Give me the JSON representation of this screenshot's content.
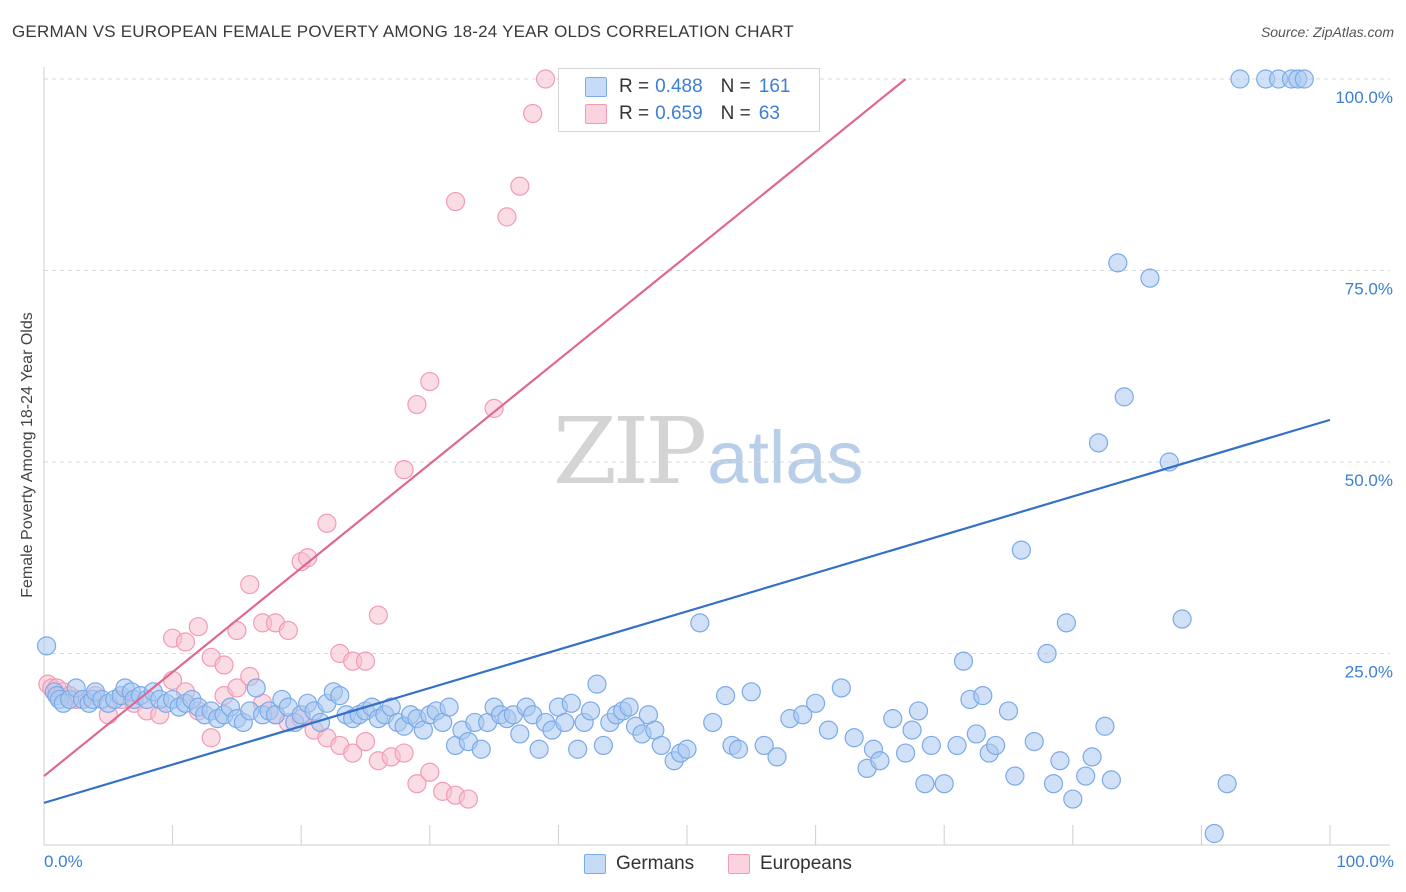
{
  "title": "GERMAN VS EUROPEAN FEMALE POVERTY AMONG 18-24 YEAR OLDS CORRELATION CHART",
  "source": "Source: ZipAtlas.com",
  "watermark": {
    "zip": "ZIP",
    "atlas": "atlas"
  },
  "legend": {
    "rows": [
      {
        "r_label": "R =",
        "r_value": "0.488",
        "n_label": "N =",
        "n_value": "161",
        "color": "#7aaae8"
      },
      {
        "r_label": "R =",
        "r_value": "0.659",
        "n_label": "N =",
        "n_value": "63",
        "color": "#f29bb5"
      }
    ]
  },
  "bottom_legend": [
    {
      "label": "Germans",
      "color": "#7aaae8"
    },
    {
      "label": "Europeans",
      "color": "#f29bb5"
    }
  ],
  "colors": {
    "german_fill": "#a9c8f0",
    "german_stroke": "#7aaae8",
    "german_line": "#3470c8",
    "european_fill": "#f6c0d0",
    "european_stroke": "#f29bb5",
    "european_line": "#e06890",
    "grid": "#d9d9d9",
    "tick_text": "#3d7fd1"
  },
  "chart_data": {
    "type": "scatter",
    "title": "GERMAN VS EUROPEAN FEMALE POVERTY AMONG 18-24 YEAR OLDS CORRELATION CHART",
    "xlabel": "",
    "ylabel": "Female Poverty Among 18-24 Year Olds",
    "xlim": [
      0,
      100
    ],
    "ylim": [
      0,
      100
    ],
    "x_tick_labels": [
      "0.0%",
      "100.0%"
    ],
    "y_tick_labels": [
      "25.0%",
      "50.0%",
      "75.0%",
      "100.0%"
    ],
    "y_ticks": [
      25,
      50,
      75,
      100
    ],
    "grid": true,
    "legend_placement": "top-center",
    "series": [
      {
        "name": "Germans",
        "R": 0.488,
        "N": 161,
        "trend": {
          "x": [
            0,
            100
          ],
          "y": [
            5.5,
            55.5
          ]
        },
        "points": [
          [
            0.2,
            26
          ],
          [
            0.8,
            20
          ],
          [
            1,
            19.5
          ],
          [
            1.2,
            19
          ],
          [
            1.5,
            18.5
          ],
          [
            2,
            19
          ],
          [
            2.5,
            20.5
          ],
          [
            3,
            19
          ],
          [
            3.5,
            18.5
          ],
          [
            3.8,
            19
          ],
          [
            4,
            20
          ],
          [
            4.5,
            19
          ],
          [
            5,
            18.5
          ],
          [
            5.5,
            19
          ],
          [
            6,
            19.5
          ],
          [
            6.3,
            20.5
          ],
          [
            6.8,
            20
          ],
          [
            7,
            19
          ],
          [
            7.5,
            19.5
          ],
          [
            8,
            19
          ],
          [
            8.5,
            20
          ],
          [
            9,
            19
          ],
          [
            9.5,
            18.5
          ],
          [
            10,
            19
          ],
          [
            10.5,
            18
          ],
          [
            11,
            18.5
          ],
          [
            11.5,
            19
          ],
          [
            12,
            18
          ],
          [
            12.5,
            17
          ],
          [
            13,
            17.5
          ],
          [
            13.5,
            16.5
          ],
          [
            14,
            17
          ],
          [
            14.5,
            18
          ],
          [
            15,
            16.5
          ],
          [
            15.5,
            16
          ],
          [
            16,
            17.5
          ],
          [
            16.5,
            20.5
          ],
          [
            17,
            17
          ],
          [
            17.5,
            17.5
          ],
          [
            18,
            17
          ],
          [
            18.5,
            19
          ],
          [
            19,
            18
          ],
          [
            19.5,
            16
          ],
          [
            20,
            17
          ],
          [
            20.5,
            18.5
          ],
          [
            21,
            17.5
          ],
          [
            21.5,
            16
          ],
          [
            22,
            18.5
          ],
          [
            22.5,
            20
          ],
          [
            23,
            19.5
          ],
          [
            23.5,
            17
          ],
          [
            24,
            16.5
          ],
          [
            24.5,
            17
          ],
          [
            25,
            17.5
          ],
          [
            25.5,
            18
          ],
          [
            26,
            16.5
          ],
          [
            26.5,
            17
          ],
          [
            27,
            18
          ],
          [
            27.5,
            16
          ],
          [
            28,
            15.5
          ],
          [
            28.5,
            17
          ],
          [
            29,
            16.5
          ],
          [
            29.5,
            15
          ],
          [
            30,
            17
          ],
          [
            30.5,
            17.5
          ],
          [
            31,
            16
          ],
          [
            31.5,
            18
          ],
          [
            32,
            13
          ],
          [
            32.5,
            15
          ],
          [
            33,
            13.5
          ],
          [
            33.5,
            16
          ],
          [
            34,
            12.5
          ],
          [
            34.5,
            16
          ],
          [
            35,
            18
          ],
          [
            35.5,
            17
          ],
          [
            36,
            16.5
          ],
          [
            36.5,
            17
          ],
          [
            37,
            14.5
          ],
          [
            37.5,
            18
          ],
          [
            38,
            17
          ],
          [
            38.5,
            12.5
          ],
          [
            39,
            16
          ],
          [
            39.5,
            15
          ],
          [
            40,
            18
          ],
          [
            40.5,
            16
          ],
          [
            41,
            18.5
          ],
          [
            41.5,
            12.5
          ],
          [
            42,
            16
          ],
          [
            42.5,
            17.5
          ],
          [
            43,
            21
          ],
          [
            43.5,
            13
          ],
          [
            44,
            16
          ],
          [
            44.5,
            17
          ],
          [
            45,
            17.5
          ],
          [
            45.5,
            18
          ],
          [
            46,
            15.5
          ],
          [
            46.5,
            14.5
          ],
          [
            47,
            17
          ],
          [
            47.5,
            15
          ],
          [
            48,
            13
          ],
          [
            49,
            11
          ],
          [
            49.5,
            12
          ],
          [
            50,
            12.5
          ],
          [
            51,
            29
          ],
          [
            52,
            16
          ],
          [
            53,
            19.5
          ],
          [
            53.5,
            13
          ],
          [
            54,
            12.5
          ],
          [
            55,
            20
          ],
          [
            56,
            13
          ],
          [
            57,
            11.5
          ],
          [
            58,
            16.5
          ],
          [
            59,
            17
          ],
          [
            60,
            18.5
          ],
          [
            61,
            15
          ],
          [
            62,
            20.5
          ],
          [
            63,
            14
          ],
          [
            64,
            10
          ],
          [
            64.5,
            12.5
          ],
          [
            65,
            11
          ],
          [
            66,
            16.5
          ],
          [
            67,
            12
          ],
          [
            67.5,
            15
          ],
          [
            68,
            17.5
          ],
          [
            68.5,
            8
          ],
          [
            69,
            13
          ],
          [
            70,
            8
          ],
          [
            71,
            13
          ],
          [
            71.5,
            24
          ],
          [
            72,
            19
          ],
          [
            72.5,
            14.5
          ],
          [
            73,
            19.5
          ],
          [
            73.5,
            12
          ],
          [
            74,
            13
          ],
          [
            75,
            17.5
          ],
          [
            75.5,
            9
          ],
          [
            76,
            38.5
          ],
          [
            77,
            13.5
          ],
          [
            78,
            25
          ],
          [
            78.5,
            8
          ],
          [
            79,
            11
          ],
          [
            79.5,
            29
          ],
          [
            80,
            6
          ],
          [
            81,
            9
          ],
          [
            81.5,
            11.5
          ],
          [
            82,
            52.5
          ],
          [
            82.5,
            15.5
          ],
          [
            83,
            8.5
          ],
          [
            83.5,
            76
          ],
          [
            84,
            58.5
          ],
          [
            86,
            74
          ],
          [
            87.5,
            50
          ],
          [
            88.5,
            29.5
          ],
          [
            91,
            1.5
          ],
          [
            92,
            8
          ],
          [
            93,
            100
          ],
          [
            95,
            100
          ],
          [
            96,
            100
          ],
          [
            97,
            100
          ],
          [
            97.5,
            100
          ],
          [
            98,
            100
          ]
        ]
      },
      {
        "name": "Europeans",
        "R": 0.659,
        "N": 63,
        "trend": {
          "x": [
            0,
            67
          ],
          "y": [
            9,
            100
          ]
        },
        "points": [
          [
            0.3,
            21
          ],
          [
            0.6,
            20.5
          ],
          [
            1,
            20.5
          ],
          [
            1.5,
            20
          ],
          [
            2,
            19.5
          ],
          [
            2.5,
            19
          ],
          [
            3,
            19
          ],
          [
            4,
            19.5
          ],
          [
            5,
            17
          ],
          [
            6,
            19
          ],
          [
            7,
            18.5
          ],
          [
            8,
            17.5
          ],
          [
            9,
            17
          ],
          [
            10,
            21.5
          ],
          [
            11,
            20
          ],
          [
            12,
            17.5
          ],
          [
            13,
            14
          ],
          [
            14,
            19.5
          ],
          [
            15,
            20.5
          ],
          [
            16,
            22
          ],
          [
            17,
            18.5
          ],
          [
            18,
            17
          ],
          [
            19,
            16
          ],
          [
            20,
            16.5
          ],
          [
            21,
            15
          ],
          [
            22,
            14
          ],
          [
            23,
            13
          ],
          [
            24,
            12
          ],
          [
            25,
            13.5
          ],
          [
            26,
            11
          ],
          [
            27,
            11.5
          ],
          [
            28,
            12
          ],
          [
            29,
            8
          ],
          [
            30,
            9.5
          ],
          [
            31,
            7
          ],
          [
            32,
            6.5
          ],
          [
            33,
            6
          ],
          [
            10,
            27
          ],
          [
            11,
            26.5
          ],
          [
            12,
            28.5
          ],
          [
            13,
            24.5
          ],
          [
            14,
            23.5
          ],
          [
            15,
            28
          ],
          [
            16,
            34
          ],
          [
            17,
            29
          ],
          [
            18,
            29
          ],
          [
            19,
            28
          ],
          [
            20,
            37
          ],
          [
            20.5,
            37.5
          ],
          [
            22,
            42
          ],
          [
            23,
            25
          ],
          [
            24,
            24
          ],
          [
            25,
            24
          ],
          [
            26,
            30
          ],
          [
            28,
            49
          ],
          [
            29,
            57.5
          ],
          [
            30,
            60.5
          ],
          [
            32,
            84
          ],
          [
            35,
            57
          ],
          [
            36,
            82
          ],
          [
            37,
            86
          ],
          [
            38,
            95.5
          ],
          [
            39,
            100
          ]
        ]
      }
    ]
  }
}
